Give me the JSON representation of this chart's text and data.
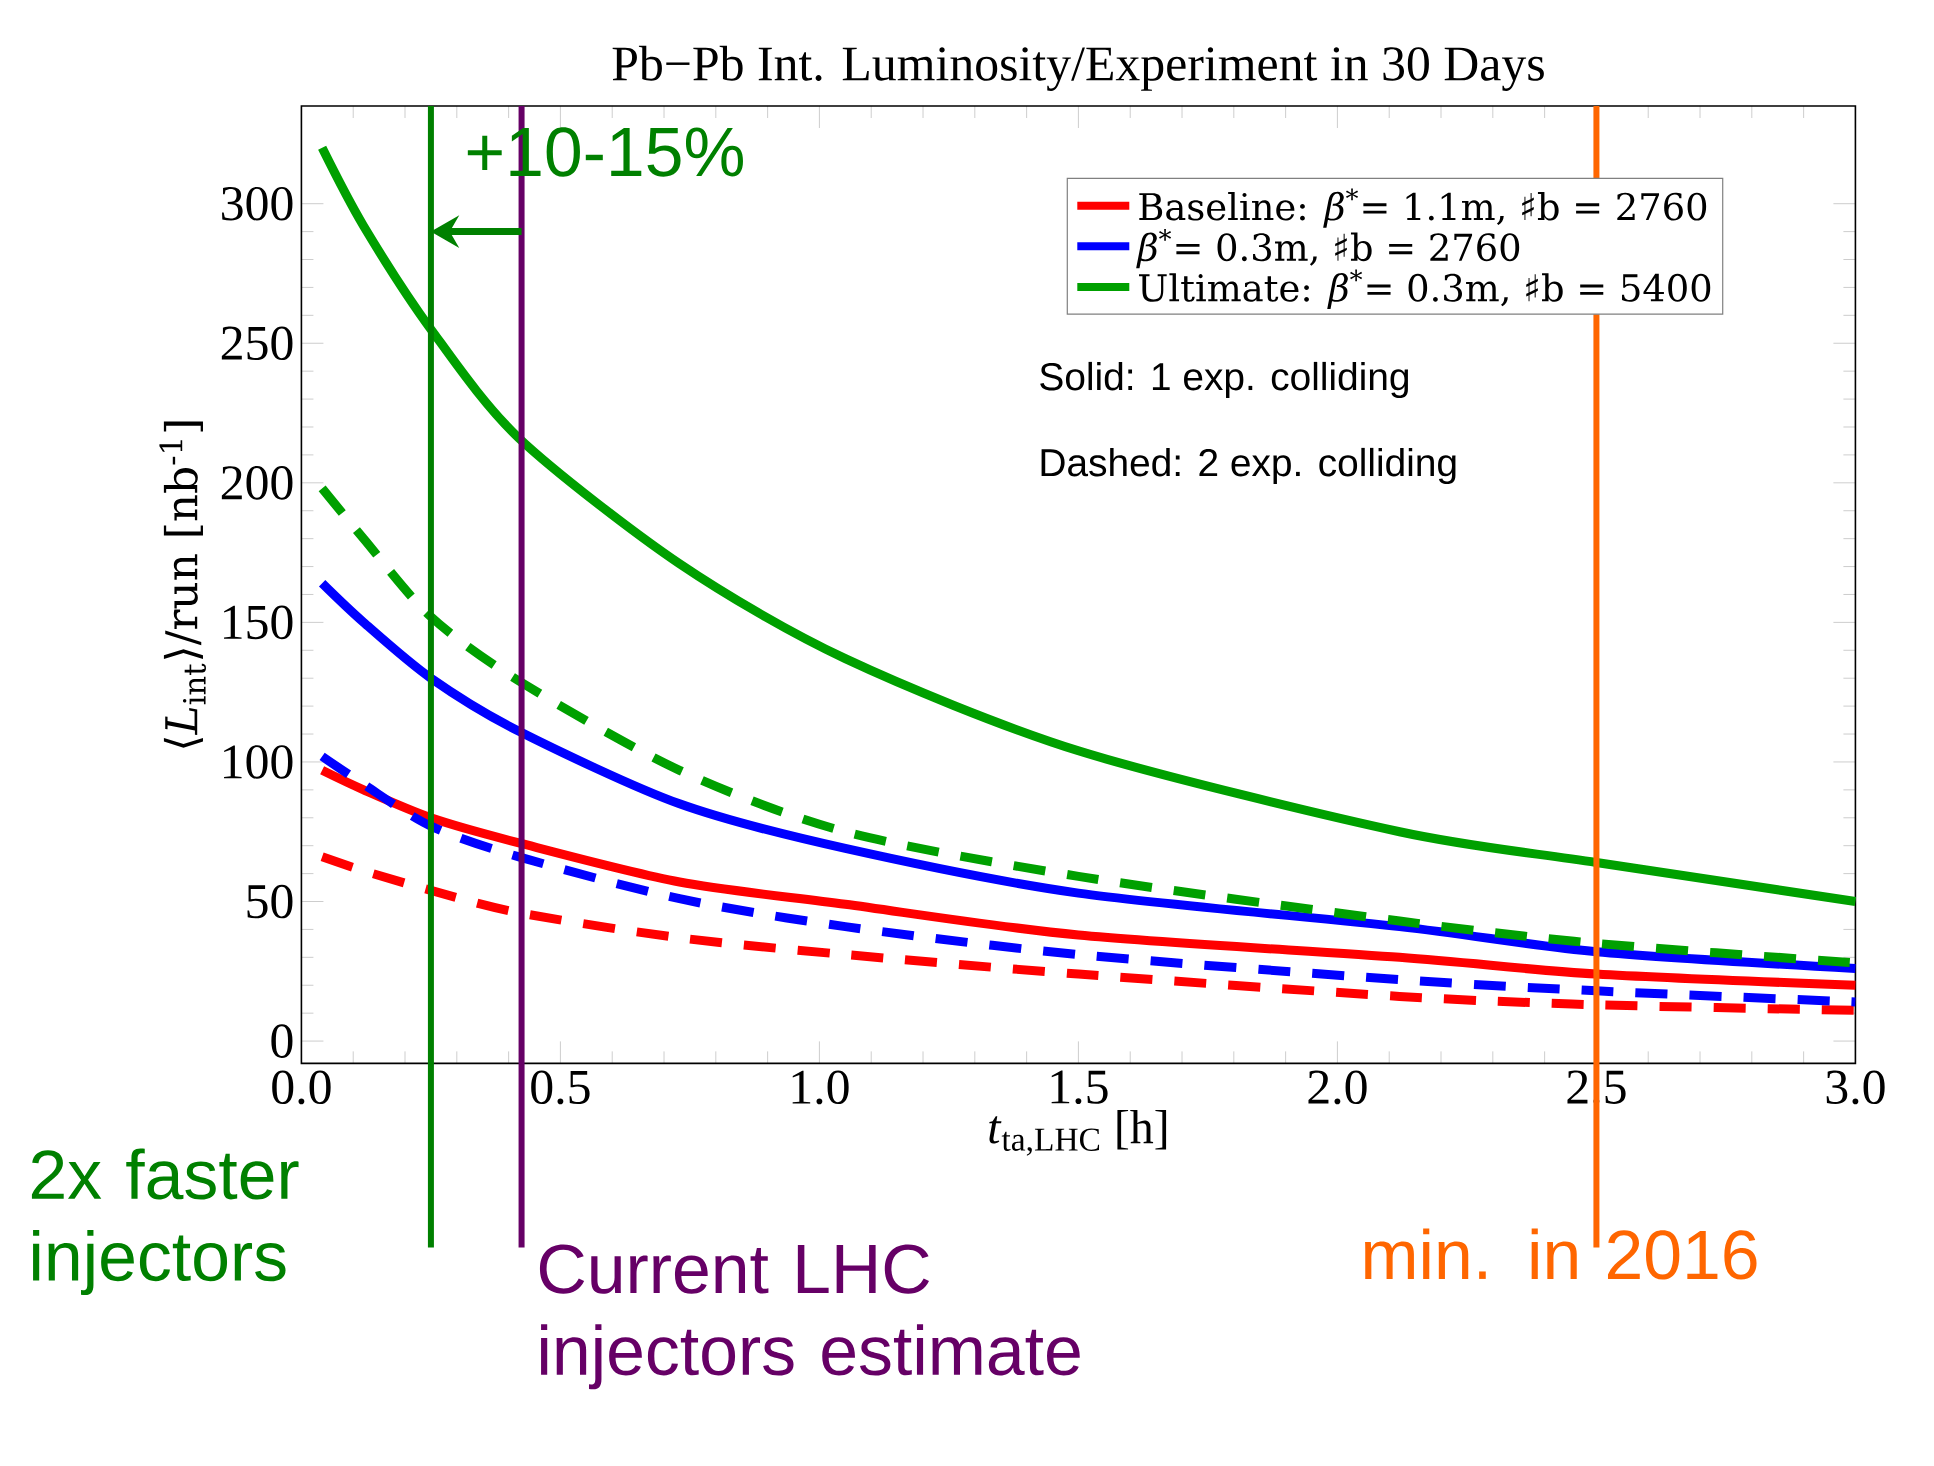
{
  "chart_data": {
    "type": "line",
    "title": "Pb−Pb Int. Luminosity/Experiment in 30 Days",
    "xlabel": "*t*$_{ta,LHC}$ [h]",
    "ylabel": "⟨*L*$_{int}$⟩/run [nb$^{-1}$]",
    "x": [
      0.04,
      0.12,
      0.25,
      0.42,
      0.73,
      1.05,
      1.5,
      2.12,
      2.5,
      3.0
    ],
    "series": [
      {
        "name": "Baseline: *β*$^{*}$= 1.1m, ♯b = 2760",
        "color": "#ff0000",
        "line_style": "solid",
        "values": [
          97,
          90,
          80,
          71,
          57,
          49,
          38,
          30,
          24,
          20
        ]
      },
      {
        "name": "*β*$^{*}$= 0.3m, ♯b = 2760",
        "color": "#0000ff",
        "line_style": "solid",
        "values": [
          164,
          150,
          130,
          111,
          85,
          69,
          53,
          41,
          32,
          26
        ]
      },
      {
        "name": "Ultimate: *β*$^{*}$= 0.3m, ♯b = 5400",
        "color": "#00a000",
        "line_style": "solid",
        "values": [
          320,
          292,
          255,
          216,
          171,
          137,
          104,
          75,
          64,
          50
        ]
      },
      {
        "color": "#ff0000",
        "line_style": "dashed",
        "values": [
          66,
          61,
          54,
          46,
          37,
          31,
          24,
          16,
          13,
          11
        ]
      },
      {
        "color": "#0000ff",
        "line_style": "dashed",
        "values": [
          102,
          92,
          77,
          66,
          51,
          41,
          31,
          22,
          18,
          14
        ]
      },
      {
        "color": "#00a000",
        "line_style": "dashed",
        "values": [
          198,
          180,
          152,
          129,
          97,
          75,
          59,
          43,
          35,
          28
        ]
      }
    ],
    "xlim": [
      0,
      3
    ],
    "ylim": [
      -8,
      335
    ],
    "xticks": [
      {
        "value": 0,
        "label": "0.0"
      },
      {
        "value": 0.5,
        "label": "0.5"
      },
      {
        "value": 1,
        "label": "1.0"
      },
      {
        "value": 1.5,
        "label": "1.5"
      },
      {
        "value": 2,
        "label": "2.0"
      },
      {
        "value": 2.5,
        "label": "2.5"
      },
      {
        "value": 3,
        "label": "3.0"
      }
    ],
    "yticks": [
      0,
      50,
      100,
      150,
      200,
      250,
      300
    ],
    "ref_lines": [
      {
        "axis": "x",
        "value": 0.25,
        "label": "2x faster injectors",
        "color": "#008000"
      },
      {
        "axis": "x",
        "value": 0.425,
        "label": "Current LHC injectors estimate",
        "color": "#660066"
      },
      {
        "axis": "x",
        "value": 2.5,
        "label": "min. in 2016",
        "color": "#ff6600"
      }
    ],
    "annotations": [
      "+10-15%",
      "Solid: 1 exp. colliding",
      "Dashed: 2 exp. colliding"
    ],
    "legend": "top right",
    "marker": "none"
  }
}
